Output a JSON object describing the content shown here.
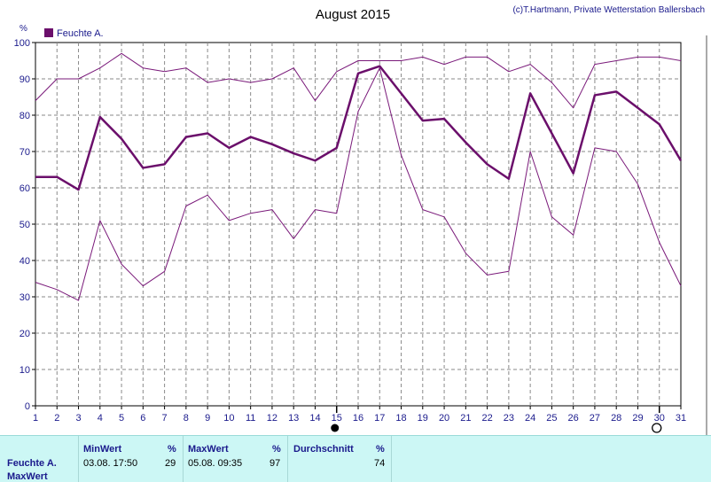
{
  "chart_data": {
    "type": "line",
    "title": "August 2015",
    "copyright": "(c)T.Hartmann, Private Wetterstation Ballersbach",
    "y_unit": "%",
    "ylim": [
      0,
      100
    ],
    "yticks": [
      0,
      10,
      20,
      30,
      40,
      50,
      60,
      70,
      80,
      90,
      100
    ],
    "x": [
      1,
      2,
      3,
      4,
      5,
      6,
      7,
      8,
      9,
      10,
      11,
      12,
      13,
      14,
      15,
      16,
      17,
      18,
      19,
      20,
      21,
      22,
      23,
      24,
      25,
      26,
      27,
      28,
      29,
      30,
      31
    ],
    "grid": true,
    "legend": "top-left",
    "series": [
      {
        "name": "Feuchte A.",
        "role": "average",
        "color": "#6b0f6b",
        "values": [
          63,
          63,
          59.5,
          79.5,
          73.5,
          65.5,
          66.5,
          74,
          75,
          71,
          74,
          72,
          69.5,
          67.5,
          71,
          91.5,
          93.5,
          86,
          78.5,
          79,
          72.5,
          66.5,
          62.5,
          86,
          75,
          64,
          85.5,
          86.5,
          82,
          77.5,
          67.5
        ]
      },
      {
        "role": "max",
        "color": "#7a1a7a",
        "values": [
          84,
          90,
          90,
          93,
          97,
          93,
          92,
          93,
          89,
          90,
          89,
          90,
          93,
          84,
          92,
          95,
          95,
          95,
          96,
          94,
          96,
          96,
          92,
          94,
          89,
          82,
          94,
          95,
          96,
          96,
          95
        ]
      },
      {
        "role": "min",
        "color": "#7a1a7a",
        "values": [
          34,
          32,
          29,
          51,
          39,
          33,
          37,
          55,
          58,
          51,
          53,
          54,
          46,
          54,
          53,
          81,
          93,
          69,
          54,
          52,
          42,
          36,
          37,
          70,
          52,
          47,
          71,
          70,
          61,
          45,
          33
        ]
      }
    ],
    "markers": [
      {
        "x": 15,
        "symbol": "full-moon"
      },
      {
        "x": 30,
        "symbol": "new-moon"
      }
    ]
  },
  "stats": {
    "row_label_1": "Feuchte A.",
    "row_label_2": "MaxWert",
    "min_header": "MinWert",
    "min_unit": "%",
    "min_time": "03.08.  17:50",
    "min_value": "29",
    "max_header": "MaxWert",
    "max_unit": "%",
    "max_time": "05.08.  09:35",
    "max_value": "97",
    "avg_header": "Durchschnitt",
    "avg_unit": "%",
    "avg_value": "74"
  }
}
